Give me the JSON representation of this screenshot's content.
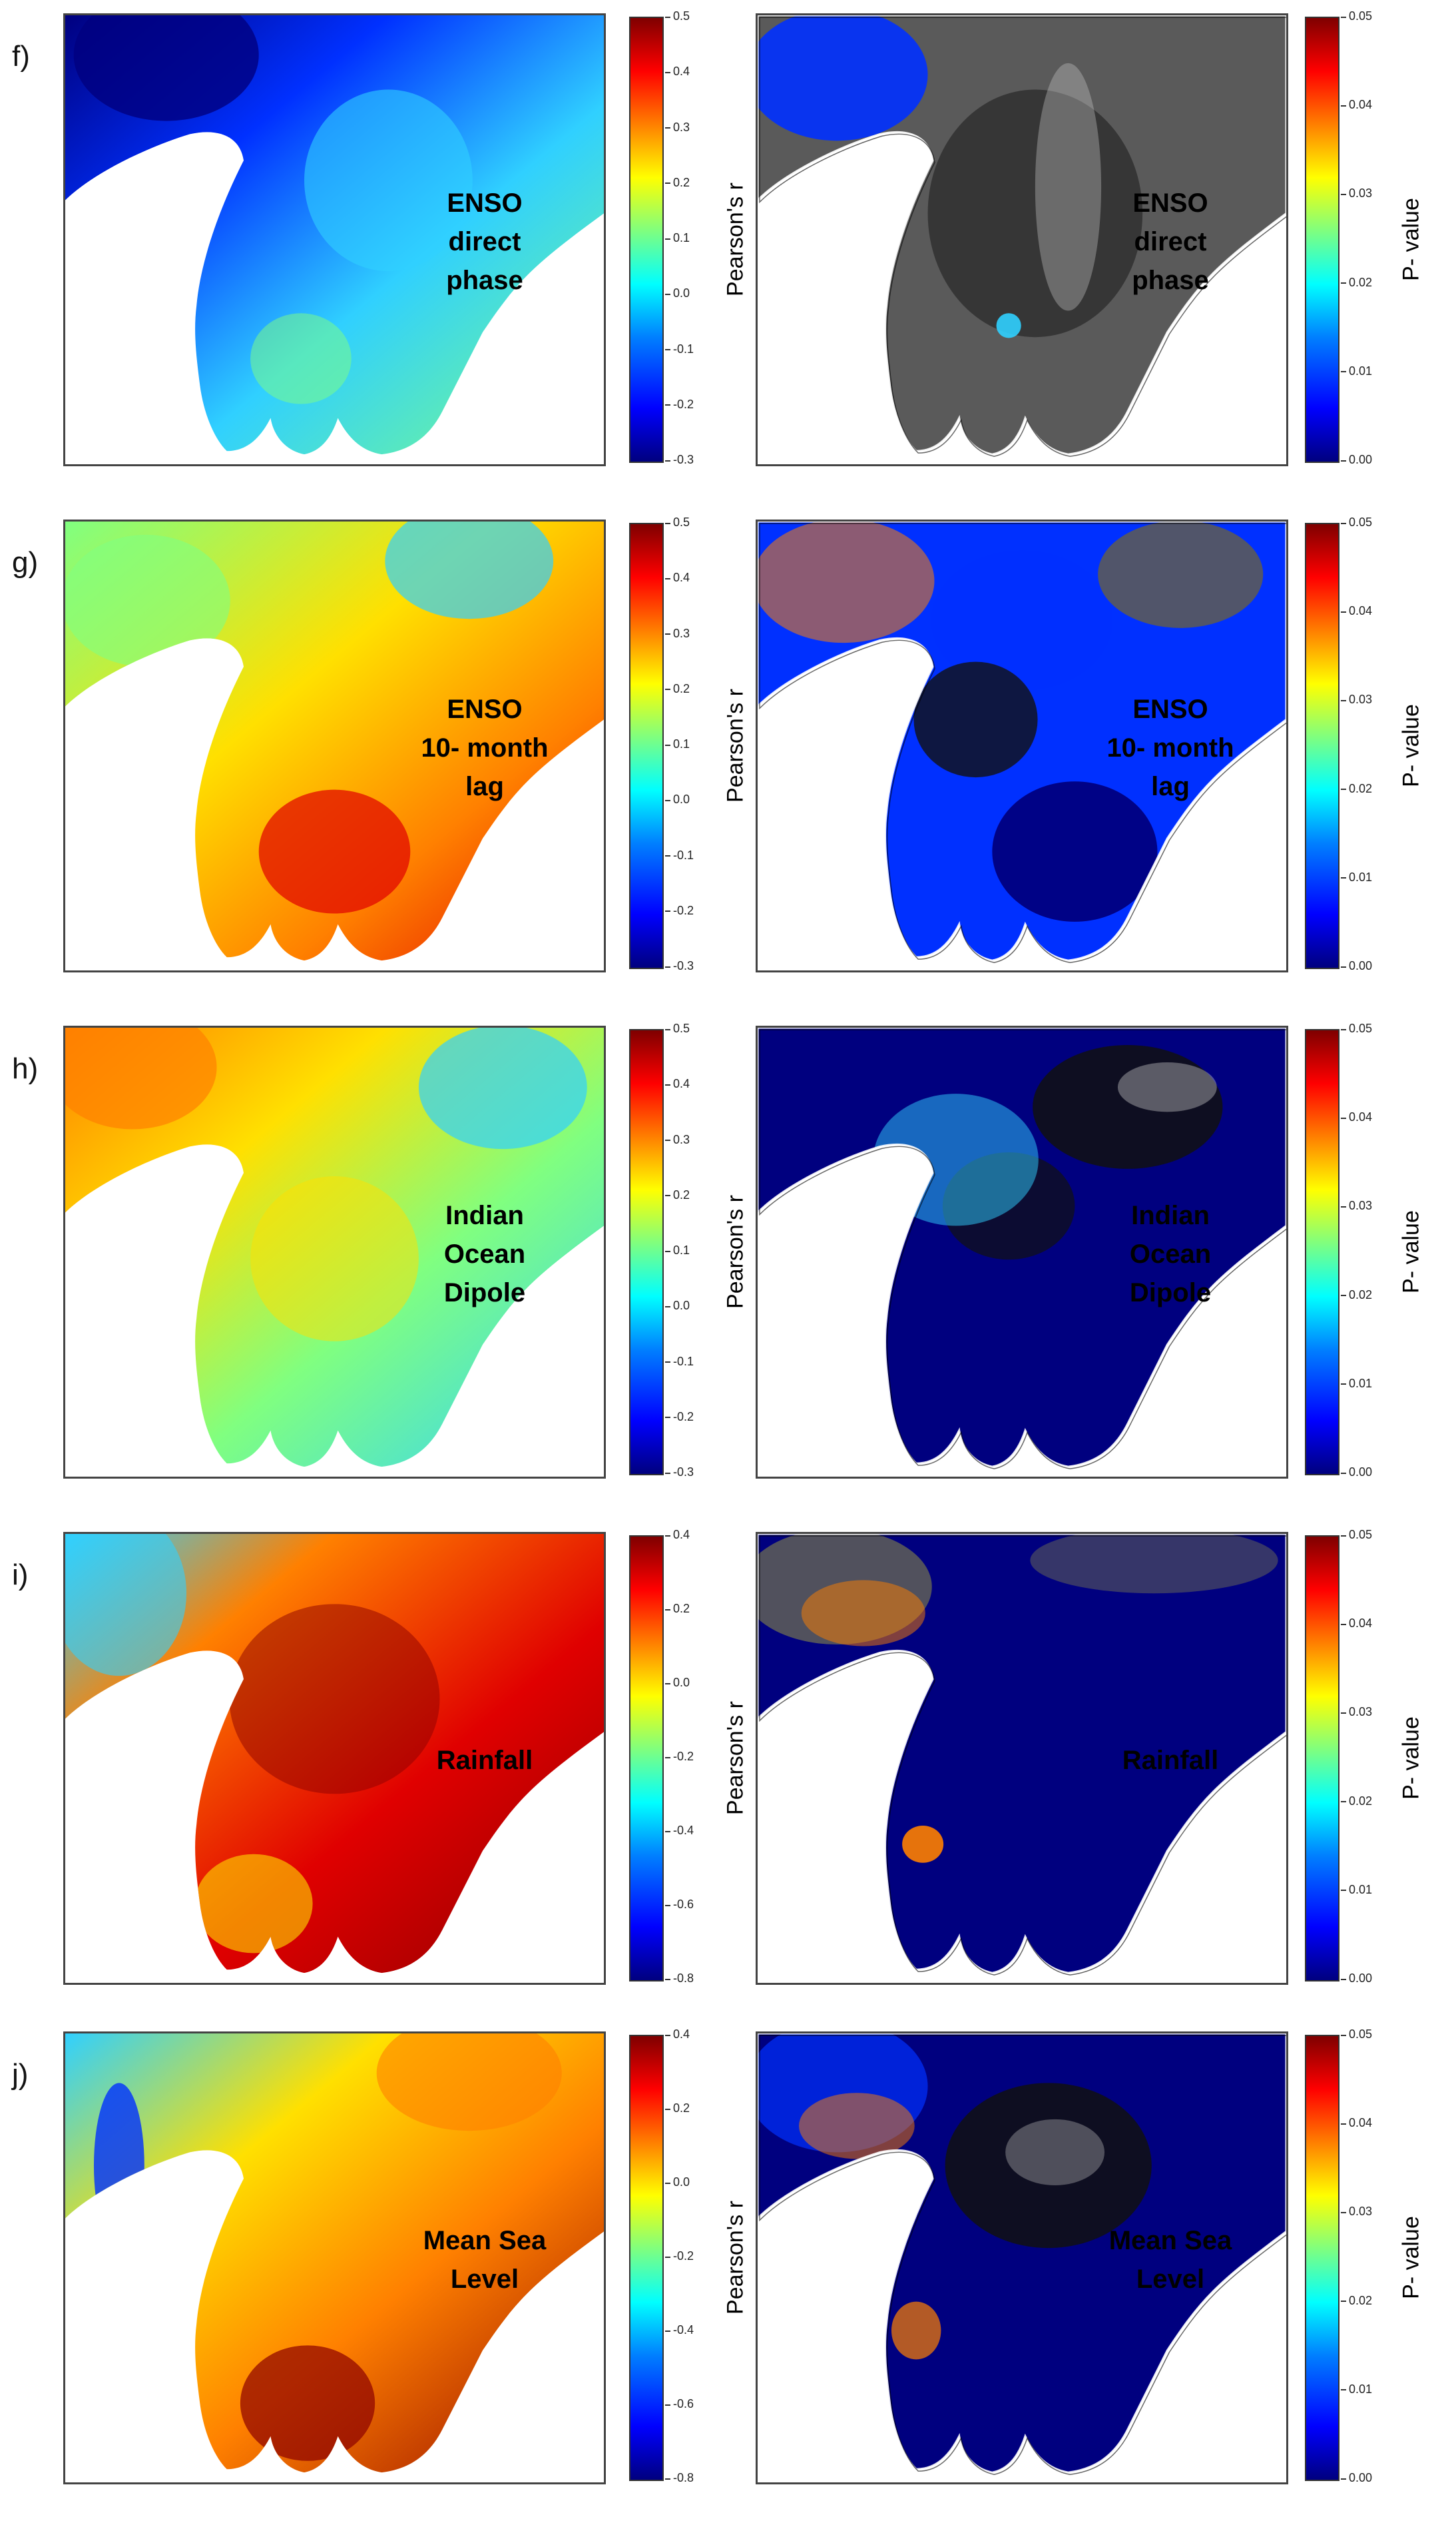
{
  "figure": {
    "rows": [
      {
        "panel_label": "f)",
        "label_lines": [
          "ENSO",
          "direct",
          "phase"
        ],
        "r_title": "Pearson's r",
        "r_ticks": [
          "0.5",
          "0.4",
          "0.3",
          "0.2",
          "0.1",
          "0.0",
          "-0.1",
          "-0.2",
          "-0.3"
        ],
        "p_title": "P- value",
        "p_ticks": [
          "0.05",
          "0.04",
          "0.03",
          "0.02",
          "0.01",
          "0.00"
        ],
        "r_style": "blue",
        "p_style": "grey-north"
      },
      {
        "panel_label": "g)",
        "label_lines": [
          "ENSO",
          "10- month",
          "lag"
        ],
        "r_title": "Pearson's r",
        "r_ticks": [
          "0.5",
          "0.4",
          "0.3",
          "0.2",
          "0.1",
          "0.0",
          "-0.1",
          "-0.2",
          "-0.3"
        ],
        "p_title": "P- value",
        "p_ticks": [
          "0.05",
          "0.04",
          "0.03",
          "0.02",
          "0.01",
          "0.00"
        ],
        "r_style": "green-red-south",
        "p_style": "mixed"
      },
      {
        "panel_label": "h)",
        "label_lines": [
          "Indian",
          "Ocean",
          "Dipole"
        ],
        "r_title": "Pearson's r",
        "r_ticks": [
          "0.5",
          "0.4",
          "0.3",
          "0.2",
          "0.1",
          "0.0",
          "-0.1",
          "-0.2",
          "-0.3"
        ],
        "p_title": "P- value",
        "p_ticks": [
          "0.05",
          "0.04",
          "0.03",
          "0.02",
          "0.01",
          "0.00"
        ],
        "r_style": "yellow-green",
        "p_style": "mostly-blue"
      },
      {
        "panel_label": "i)",
        "label_lines": [
          "Rainfall"
        ],
        "r_title": "Pearson's r",
        "r_ticks": [
          "0.4",
          "0.2",
          "0.0",
          "-0.2",
          "-0.4",
          "-0.6",
          "-0.8"
        ],
        "p_title": "P- value",
        "p_ticks": [
          "0.05",
          "0.04",
          "0.03",
          "0.02",
          "0.01",
          "0.00"
        ],
        "r_style": "red",
        "p_style": "blue"
      },
      {
        "panel_label": "j)",
        "label_lines": [
          "Mean Sea",
          "Level"
        ],
        "r_title": "Pearson's r",
        "r_ticks": [
          "0.4",
          "0.2",
          "0.0",
          "-0.2",
          "-0.4",
          "-0.6",
          "-0.8"
        ],
        "p_title": "P- value",
        "p_ticks": [
          "0.05",
          "0.04",
          "0.03",
          "0.02",
          "0.01",
          "0.00"
        ],
        "r_style": "orange-red",
        "p_style": "grey-center"
      }
    ],
    "colors": {
      "deep_blue": "#00007f",
      "blue": "#0030ff",
      "cyan": "#30d0ff",
      "green": "#80ff80",
      "yellow": "#ffe000",
      "orange": "#ff8000",
      "red": "#e00000",
      "dark_red": "#8b0000",
      "grey": "#5a5a5a",
      "black": "#111111",
      "white": "#ffffff"
    }
  }
}
